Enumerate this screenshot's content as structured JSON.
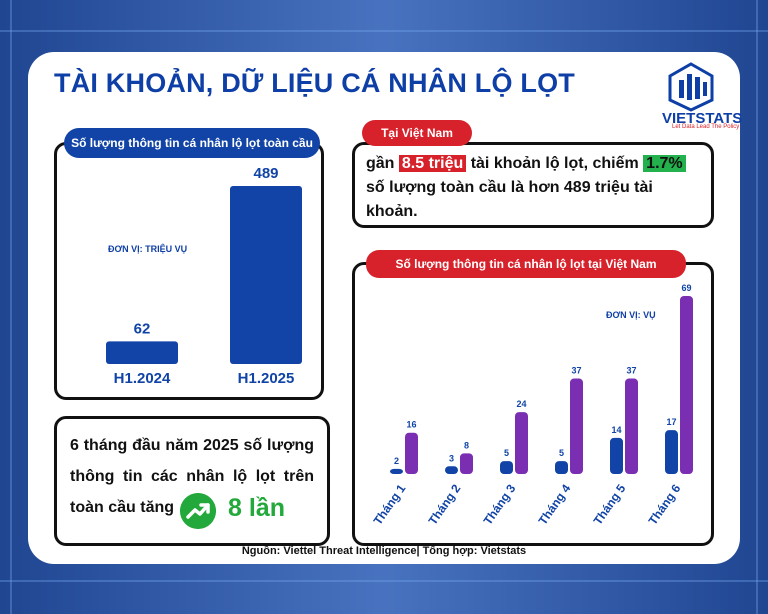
{
  "title": "TÀI KHOẢN, DỮ LIỆU CÁ NHÂN LỘ LỌT",
  "logo": {
    "name": "VIETSTATS",
    "tagline": "Let Data Lead The Policy"
  },
  "global_panel": {
    "heading": "Số lượng thông tin cá nhân lộ lọt toàn cầu",
    "unit": "ĐƠN VỊ: TRIỆU VỤ"
  },
  "vn_info": {
    "tag": "Tại Việt Nam",
    "p1": "gần ",
    "hl1": "8.5 triệu",
    "p2": " tài khoản lộ lọt, chiếm ",
    "hl2": "1.7%",
    "p3": " số lượng toàn cầu là hơn 489 triệu tài khoản."
  },
  "summary": {
    "text": "6 tháng đầu năm 2025 số lượng thông tin các nhân lộ lọt trên toàn cầu tăng",
    "value": "8 lần"
  },
  "vn_panel": {
    "heading": "Số lượng thông tin cá nhân lộ lọt tại Việt Nam",
    "unit": "ĐƠN VỊ: VỤ"
  },
  "source": "Nguồn: Viettel Threat Intelligence| Tổng hợp: Vietstats",
  "colors": {
    "blue": "#1144a6",
    "purple": "#7a2fb2",
    "red": "#d8222b",
    "green": "#23a93b"
  },
  "icons": [
    "logo-icon",
    "trend-up-icon"
  ],
  "chart_data": [
    {
      "type": "bar",
      "title": "Số lượng thông tin cá nhân lộ lọt toàn cầu",
      "categories": [
        "H1.2024",
        "H1.2025"
      ],
      "values": [
        62,
        489
      ],
      "ylabel": "ĐƠN VỊ: TRIỆU VỤ",
      "ylim": [
        0,
        489
      ],
      "grid": false
    },
    {
      "type": "bar",
      "title": "Số lượng thông tin cá nhân lộ lọt tại Việt Nam",
      "categories": [
        "Tháng 1",
        "Tháng 2",
        "Tháng 3",
        "Tháng 4",
        "Tháng 5",
        "Tháng 6"
      ],
      "series": [
        {
          "values": [
            2,
            3,
            5,
            5,
            14,
            17
          ]
        },
        {
          "values": [
            16,
            8,
            24,
            37,
            37,
            69
          ]
        }
      ],
      "ylabel": "ĐƠN VỊ: VỤ",
      "ylim": [
        0,
        69
      ],
      "grid": false
    }
  ]
}
